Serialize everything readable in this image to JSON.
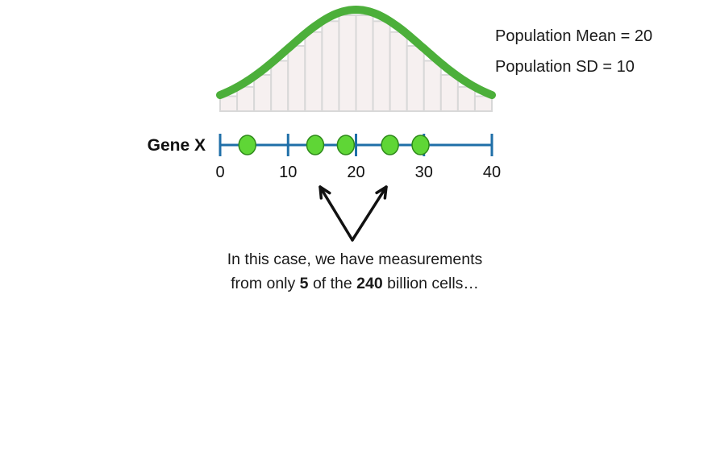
{
  "stats": {
    "mean_label": "Population Mean = 20",
    "sd_label": "Population SD = 10"
  },
  "gene_label": "Gene X",
  "axis": {
    "min": 0,
    "max": 40,
    "ticks": [
      "0",
      "10",
      "20",
      "30",
      "40"
    ]
  },
  "population": {
    "mean": 20,
    "sd": 10
  },
  "samples": [
    4,
    14,
    18.5,
    25,
    29.5
  ],
  "caption": {
    "line1": "In this case, we have measurements",
    "line2_before_n": "from only ",
    "n": "5",
    "line2_middle": " of the ",
    "total": "240",
    "line2_after_total": " billion cells…"
  },
  "colors": {
    "curve": "#4caf3a",
    "histogram_fill": "#f6f0f0",
    "histogram_stroke": "#d8d8d8",
    "axis": "#1f6fa8",
    "sample_fill": "#5fd636",
    "sample_stroke": "#2e8a1a",
    "arrow": "#111111"
  }
}
